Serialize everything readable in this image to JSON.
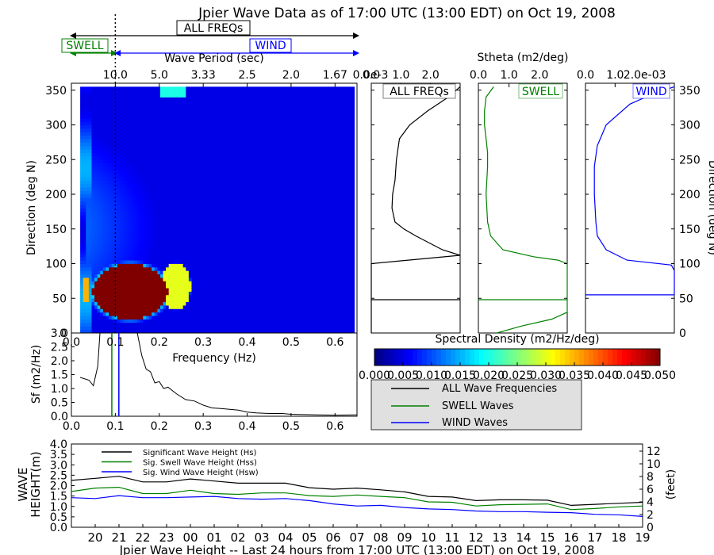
{
  "title": "Jpier Wave Data as of 17:00 UTC (13:00 EDT) on Oct 19, 2008",
  "labels": {
    "all_freqs": "ALL FREQs",
    "swell": "SWELL",
    "wind": "WIND",
    "wave_period": "Wave Period (sec)",
    "stheta": "Stheta (m2/deg)",
    "direction": "Direction (deg N)",
    "direction_right": "Direction (deg N)",
    "frequency": "Frequency (Hz)",
    "sf": "Sf (m2/Hz)",
    "spectral_density": "Spectral Density (m2/Hz/deg)",
    "wave_height_left_1": "WAVE",
    "wave_height_left_2": "HEIGHT(m)",
    "feet": "(feet)",
    "bottom_title": "Jpier Wave Height -- Last 24 hours from 17:00 UTC (13:00 EDT) on Oct 19, 2008",
    "stheta_exp_all": "0.0e-3",
    "stheta_exp_wind": "e-03"
  },
  "colors": {
    "all": "#000000",
    "swell": "#008000",
    "wind": "#0000ff"
  },
  "chart_data": [
    {
      "type": "heatmap",
      "name": "directional-spectrum",
      "xlabel": "Frequency (Hz)",
      "ylabel": "Direction (deg N)",
      "xlim": [
        0.0,
        0.65
      ],
      "ylim": [
        0,
        360
      ],
      "x_ticks": [
        "0.0",
        "0.1",
        "0.2",
        "0.3",
        "0.4",
        "0.5",
        "0.6"
      ],
      "y_ticks": [
        "0",
        "50",
        "100",
        "150",
        "200",
        "250",
        "300",
        "350"
      ],
      "top_axis_label": "Wave Period (sec)",
      "top_ticks": [
        "10.0",
        "5.0",
        "3.33",
        "2.5",
        "2.0",
        "1.67"
      ],
      "top_tick_freqs": [
        0.1,
        0.2,
        0.3,
        0.4,
        0.5,
        0.6
      ],
      "separation_freq": 0.1,
      "color_scale_max": 0.05,
      "hot_spots": [
        {
          "freq_range": [
            0.04,
            0.22
          ],
          "dir_range": [
            15,
            100
          ],
          "level": 0.05
        },
        {
          "freq_range": [
            0.02,
            0.04
          ],
          "dir_range": [
            40,
            80
          ],
          "level": 0.035
        },
        {
          "freq_range": [
            0.2,
            0.27
          ],
          "dir_range": [
            30,
            100
          ],
          "level": 0.03
        }
      ]
    },
    {
      "type": "bar",
      "name": "colorbar",
      "title": "Spectral Density (m2/Hz/deg)",
      "ticks": [
        "0.000",
        "0.005",
        "0.010",
        "0.015",
        "0.020",
        "0.025",
        "0.030",
        "0.035",
        "0.040",
        "0.045",
        "0.050"
      ],
      "range": [
        0.0,
        0.05
      ]
    },
    {
      "type": "line",
      "name": "frequency-spectrum",
      "xlabel": "Frequency (Hz)",
      "ylabel": "Sf (m2/Hz)",
      "xlim": [
        0.0,
        0.65
      ],
      "ylim": [
        0.0,
        3.0
      ],
      "x_ticks": [
        "0.0",
        "0.1",
        "0.2",
        "0.3",
        "0.4",
        "0.5",
        "0.6"
      ],
      "y_ticks": [
        "0.0",
        "0.5",
        "1.0",
        "1.5",
        "2.0",
        "2.5",
        "3.0"
      ],
      "x": [
        0.02,
        0.04,
        0.05,
        0.06,
        0.065,
        0.07,
        0.08,
        0.09,
        0.1,
        0.11,
        0.12,
        0.13,
        0.14,
        0.15,
        0.16,
        0.17,
        0.18,
        0.19,
        0.2,
        0.21,
        0.22,
        0.24,
        0.26,
        0.28,
        0.3,
        0.32,
        0.34,
        0.36,
        0.38,
        0.4,
        0.42,
        0.45,
        0.48,
        0.5,
        0.53,
        0.56,
        0.6,
        0.65
      ],
      "y": [
        1.4,
        1.3,
        1.1,
        1.8,
        3.0,
        3.0,
        3.0,
        3.0,
        3.0,
        3.0,
        3.0,
        3.0,
        3.0,
        3.0,
        2.2,
        1.7,
        1.6,
        1.2,
        1.25,
        1.0,
        1.05,
        0.8,
        0.6,
        0.55,
        0.4,
        0.3,
        0.28,
        0.25,
        0.22,
        0.15,
        0.12,
        0.1,
        0.1,
        0.07,
        0.06,
        0.05,
        0.04,
        0.05
      ],
      "swell_freq": 0.092,
      "wind_freq": 0.108
    },
    {
      "type": "line",
      "name": "stheta-all",
      "title": "ALL FREQs",
      "xlim": [
        0.0,
        3.0
      ],
      "x_ticks": [
        "0.0",
        "1.0",
        "2.0"
      ],
      "ylim": [
        0,
        360
      ],
      "separation_dir": 48,
      "dir": [
        0,
        10,
        20,
        30,
        40,
        48,
        60,
        80,
        100,
        112,
        120,
        140,
        150,
        160,
        180,
        200,
        220,
        250,
        280,
        300,
        320,
        340,
        355
      ],
      "value": [
        0.0,
        0.0,
        0.0,
        0.0,
        0.0,
        0.0,
        0.0,
        0.0,
        0.0,
        3.0,
        2.4,
        1.5,
        1.1,
        0.8,
        0.7,
        0.72,
        0.8,
        0.85,
        0.95,
        1.3,
        1.9,
        2.6,
        3.0
      ]
    },
    {
      "type": "line",
      "name": "stheta-swell",
      "title": "SWELL",
      "xlim": [
        0.0,
        2.9
      ],
      "x_ticks": [
        "0.0",
        "1.0",
        "2.0"
      ],
      "ylim": [
        0,
        360
      ],
      "separation_dir": 48,
      "dir": [
        0,
        10,
        20,
        30,
        40,
        45,
        60,
        80,
        100,
        105,
        110,
        120,
        140,
        160,
        200,
        240,
        260,
        280,
        300,
        320,
        340,
        355
      ],
      "value": [
        0.6,
        1.4,
        2.4,
        2.9,
        2.9,
        2.9,
        2.9,
        2.9,
        2.9,
        2.6,
        1.8,
        0.8,
        0.4,
        0.3,
        0.25,
        0.3,
        0.3,
        0.25,
        0.2,
        0.2,
        0.25,
        0.5
      ]
    },
    {
      "type": "line",
      "name": "stheta-wind",
      "title": "WIND",
      "xlim": [
        0.0,
        3.0
      ],
      "x_ticks": [
        "0.0",
        "1.0",
        "2.0e-03"
      ],
      "ylim": [
        0,
        360
      ],
      "separation_dir": 55,
      "dir": [
        55,
        70,
        90,
        98,
        105,
        120,
        140,
        160,
        200,
        240,
        270,
        300,
        330,
        345,
        355
      ],
      "value": [
        3.0,
        3.0,
        3.0,
        2.9,
        1.4,
        0.7,
        0.4,
        0.35,
        0.3,
        0.3,
        0.4,
        0.7,
        1.5,
        2.3,
        3.0
      ]
    },
    {
      "type": "line",
      "name": "wave-height-24h",
      "ylabel": "WAVE HEIGHT(m)",
      "ylabel_right": "(feet)",
      "ylim": [
        0.0,
        4.0
      ],
      "y_ticks": [
        "0.0",
        "0.5",
        "1.0",
        "1.5",
        "2.0",
        "2.5",
        "3.0",
        "3.5",
        "4.0"
      ],
      "y_right_ticks": [
        "0",
        "2",
        "4",
        "6",
        "8",
        "10",
        "12"
      ],
      "x_ticks": [
        "20",
        "21",
        "22",
        "23",
        "00",
        "01",
        "02",
        "03",
        "04",
        "05",
        "06",
        "07",
        "08",
        "09",
        "10",
        "11",
        "12",
        "13",
        "14",
        "15",
        "16",
        "17",
        "18",
        "19"
      ],
      "x": [
        19,
        20,
        21,
        22,
        23,
        24,
        25,
        26,
        27,
        28,
        29,
        30,
        31,
        32,
        33,
        34,
        35,
        36,
        37,
        38,
        39,
        40,
        41,
        42,
        43
      ],
      "series": [
        {
          "name": "Significant Wave Height (Hs)",
          "color": "#000000",
          "values": [
            2.25,
            2.35,
            2.45,
            2.18,
            2.18,
            2.32,
            2.22,
            2.12,
            2.12,
            2.12,
            1.9,
            1.83,
            1.88,
            1.8,
            1.7,
            1.48,
            1.45,
            1.28,
            1.32,
            1.32,
            1.3,
            1.05,
            1.1,
            1.15,
            1.2
          ]
        },
        {
          "name": "Sig. Swell Wave Height (Hss)",
          "color": "#008000",
          "values": [
            1.72,
            1.88,
            1.92,
            1.62,
            1.62,
            1.78,
            1.62,
            1.58,
            1.65,
            1.65,
            1.52,
            1.48,
            1.55,
            1.48,
            1.42,
            1.22,
            1.2,
            1.02,
            1.08,
            1.1,
            1.12,
            0.85,
            0.9,
            0.98,
            1.02
          ]
        },
        {
          "name": "Sig. Wind Wave Height (Hsw)",
          "color": "#0000ff",
          "values": [
            1.42,
            1.38,
            1.52,
            1.42,
            1.42,
            1.45,
            1.48,
            1.38,
            1.35,
            1.38,
            1.28,
            1.12,
            1.02,
            1.05,
            0.95,
            0.88,
            0.85,
            0.78,
            0.75,
            0.75,
            0.72,
            0.7,
            0.62,
            0.6,
            0.52
          ]
        }
      ]
    }
  ],
  "legend": {
    "entries": [
      "ALL Wave Frequencies",
      "SWELL Waves",
      "WIND Waves"
    ]
  }
}
